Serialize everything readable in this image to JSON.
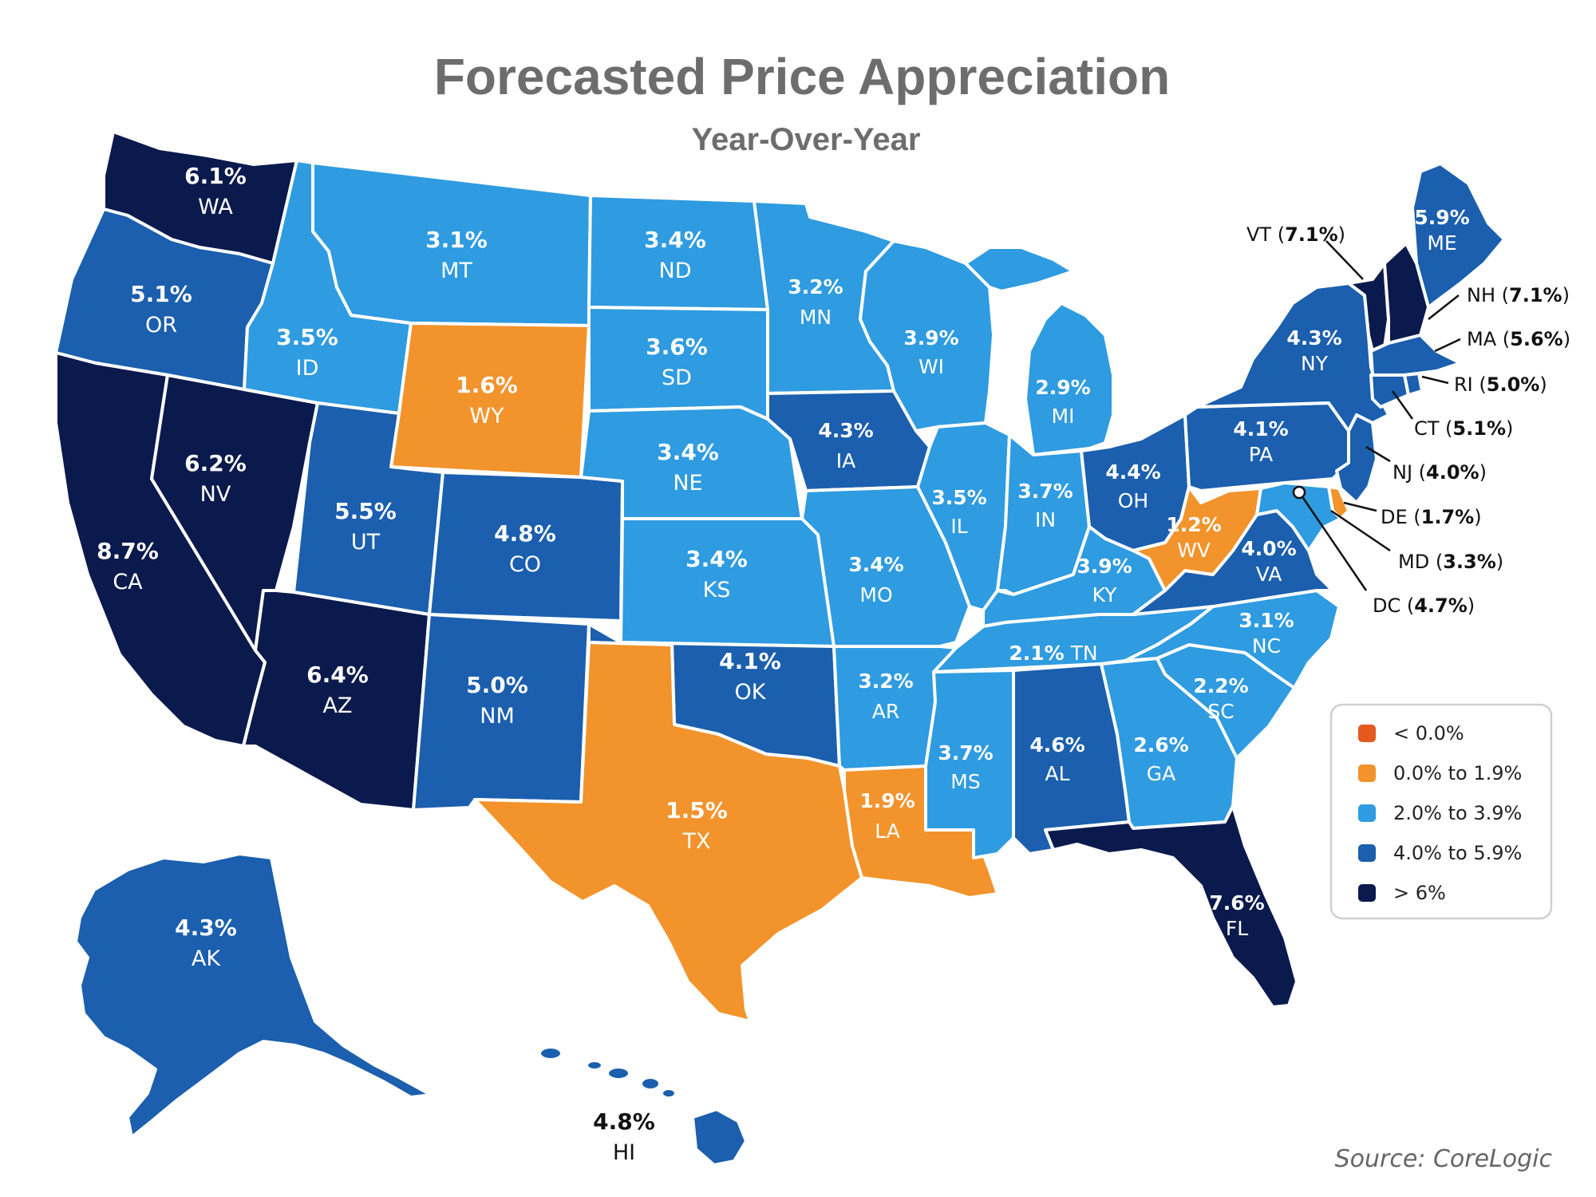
{
  "title": "Forecasted Price Appreciation",
  "subtitle": "Year-Over-Year",
  "source": "Source: CoreLogic",
  "colors": {
    "neg": "#e5581e",
    "low": "#f2932c",
    "mid": "#2f9be0",
    "high": "#1b5fae",
    "top": "#0b1a4d"
  },
  "legend": [
    {
      "key": "neg",
      "label": "< 0.0%"
    },
    {
      "key": "low",
      "label": "0.0% to 1.9%"
    },
    {
      "key": "mid",
      "label": "2.0% to 3.9%"
    },
    {
      "key": "high",
      "label": "4.0% to 5.9%"
    },
    {
      "key": "top",
      "label": "> 6%"
    }
  ],
  "states": {
    "WA": {
      "value": "6.1%",
      "bin": "top"
    },
    "OR": {
      "value": "5.1%",
      "bin": "high"
    },
    "CA": {
      "value": "8.7%",
      "bin": "top"
    },
    "NV": {
      "value": "6.2%",
      "bin": "top"
    },
    "ID": {
      "value": "3.5%",
      "bin": "mid"
    },
    "MT": {
      "value": "3.1%",
      "bin": "mid"
    },
    "WY": {
      "value": "1.6%",
      "bin": "low"
    },
    "UT": {
      "value": "5.5%",
      "bin": "high"
    },
    "AZ": {
      "value": "6.4%",
      "bin": "top"
    },
    "CO": {
      "value": "4.8%",
      "bin": "high"
    },
    "NM": {
      "value": "5.0%",
      "bin": "high"
    },
    "ND": {
      "value": "3.4%",
      "bin": "mid"
    },
    "SD": {
      "value": "3.6%",
      "bin": "mid"
    },
    "NE": {
      "value": "3.4%",
      "bin": "mid"
    },
    "KS": {
      "value": "3.4%",
      "bin": "mid"
    },
    "OK": {
      "value": "4.1%",
      "bin": "high"
    },
    "TX": {
      "value": "1.5%",
      "bin": "low"
    },
    "MN": {
      "value": "3.2%",
      "bin": "mid"
    },
    "IA": {
      "value": "4.3%",
      "bin": "high"
    },
    "MO": {
      "value": "3.4%",
      "bin": "mid"
    },
    "AR": {
      "value": "3.2%",
      "bin": "mid"
    },
    "LA": {
      "value": "1.9%",
      "bin": "low"
    },
    "WI": {
      "value": "3.9%",
      "bin": "mid"
    },
    "IL": {
      "value": "3.5%",
      "bin": "mid"
    },
    "MI": {
      "value": "2.9%",
      "bin": "mid"
    },
    "IN": {
      "value": "3.7%",
      "bin": "mid"
    },
    "OH": {
      "value": "4.4%",
      "bin": "high"
    },
    "KY": {
      "value": "3.9%",
      "bin": "mid"
    },
    "TN": {
      "value": "2.1%",
      "bin": "mid"
    },
    "MS": {
      "value": "3.7%",
      "bin": "mid"
    },
    "AL": {
      "value": "4.6%",
      "bin": "high"
    },
    "GA": {
      "value": "2.6%",
      "bin": "mid"
    },
    "FL": {
      "value": "7.6%",
      "bin": "top"
    },
    "SC": {
      "value": "2.2%",
      "bin": "mid"
    },
    "NC": {
      "value": "3.1%",
      "bin": "mid"
    },
    "VA": {
      "value": "4.0%",
      "bin": "high"
    },
    "WV": {
      "value": "1.2%",
      "bin": "low"
    },
    "PA": {
      "value": "4.1%",
      "bin": "high"
    },
    "NY": {
      "value": "4.3%",
      "bin": "high"
    },
    "ME": {
      "value": "5.9%",
      "bin": "high"
    },
    "VT": {
      "value": "7.1%",
      "bin": "top"
    },
    "NH": {
      "value": "7.1%",
      "bin": "top"
    },
    "MA": {
      "value": "5.6%",
      "bin": "high"
    },
    "RI": {
      "value": "5.0%",
      "bin": "high"
    },
    "CT": {
      "value": "5.1%",
      "bin": "high"
    },
    "NJ": {
      "value": "4.0%",
      "bin": "high"
    },
    "DE": {
      "value": "1.7%",
      "bin": "low"
    },
    "MD": {
      "value": "3.3%",
      "bin": "mid"
    },
    "DC": {
      "value": "4.7%",
      "bin": "high"
    },
    "AK": {
      "value": "4.3%",
      "bin": "high"
    },
    "HI": {
      "value": "4.8%",
      "bin": "high"
    }
  }
}
